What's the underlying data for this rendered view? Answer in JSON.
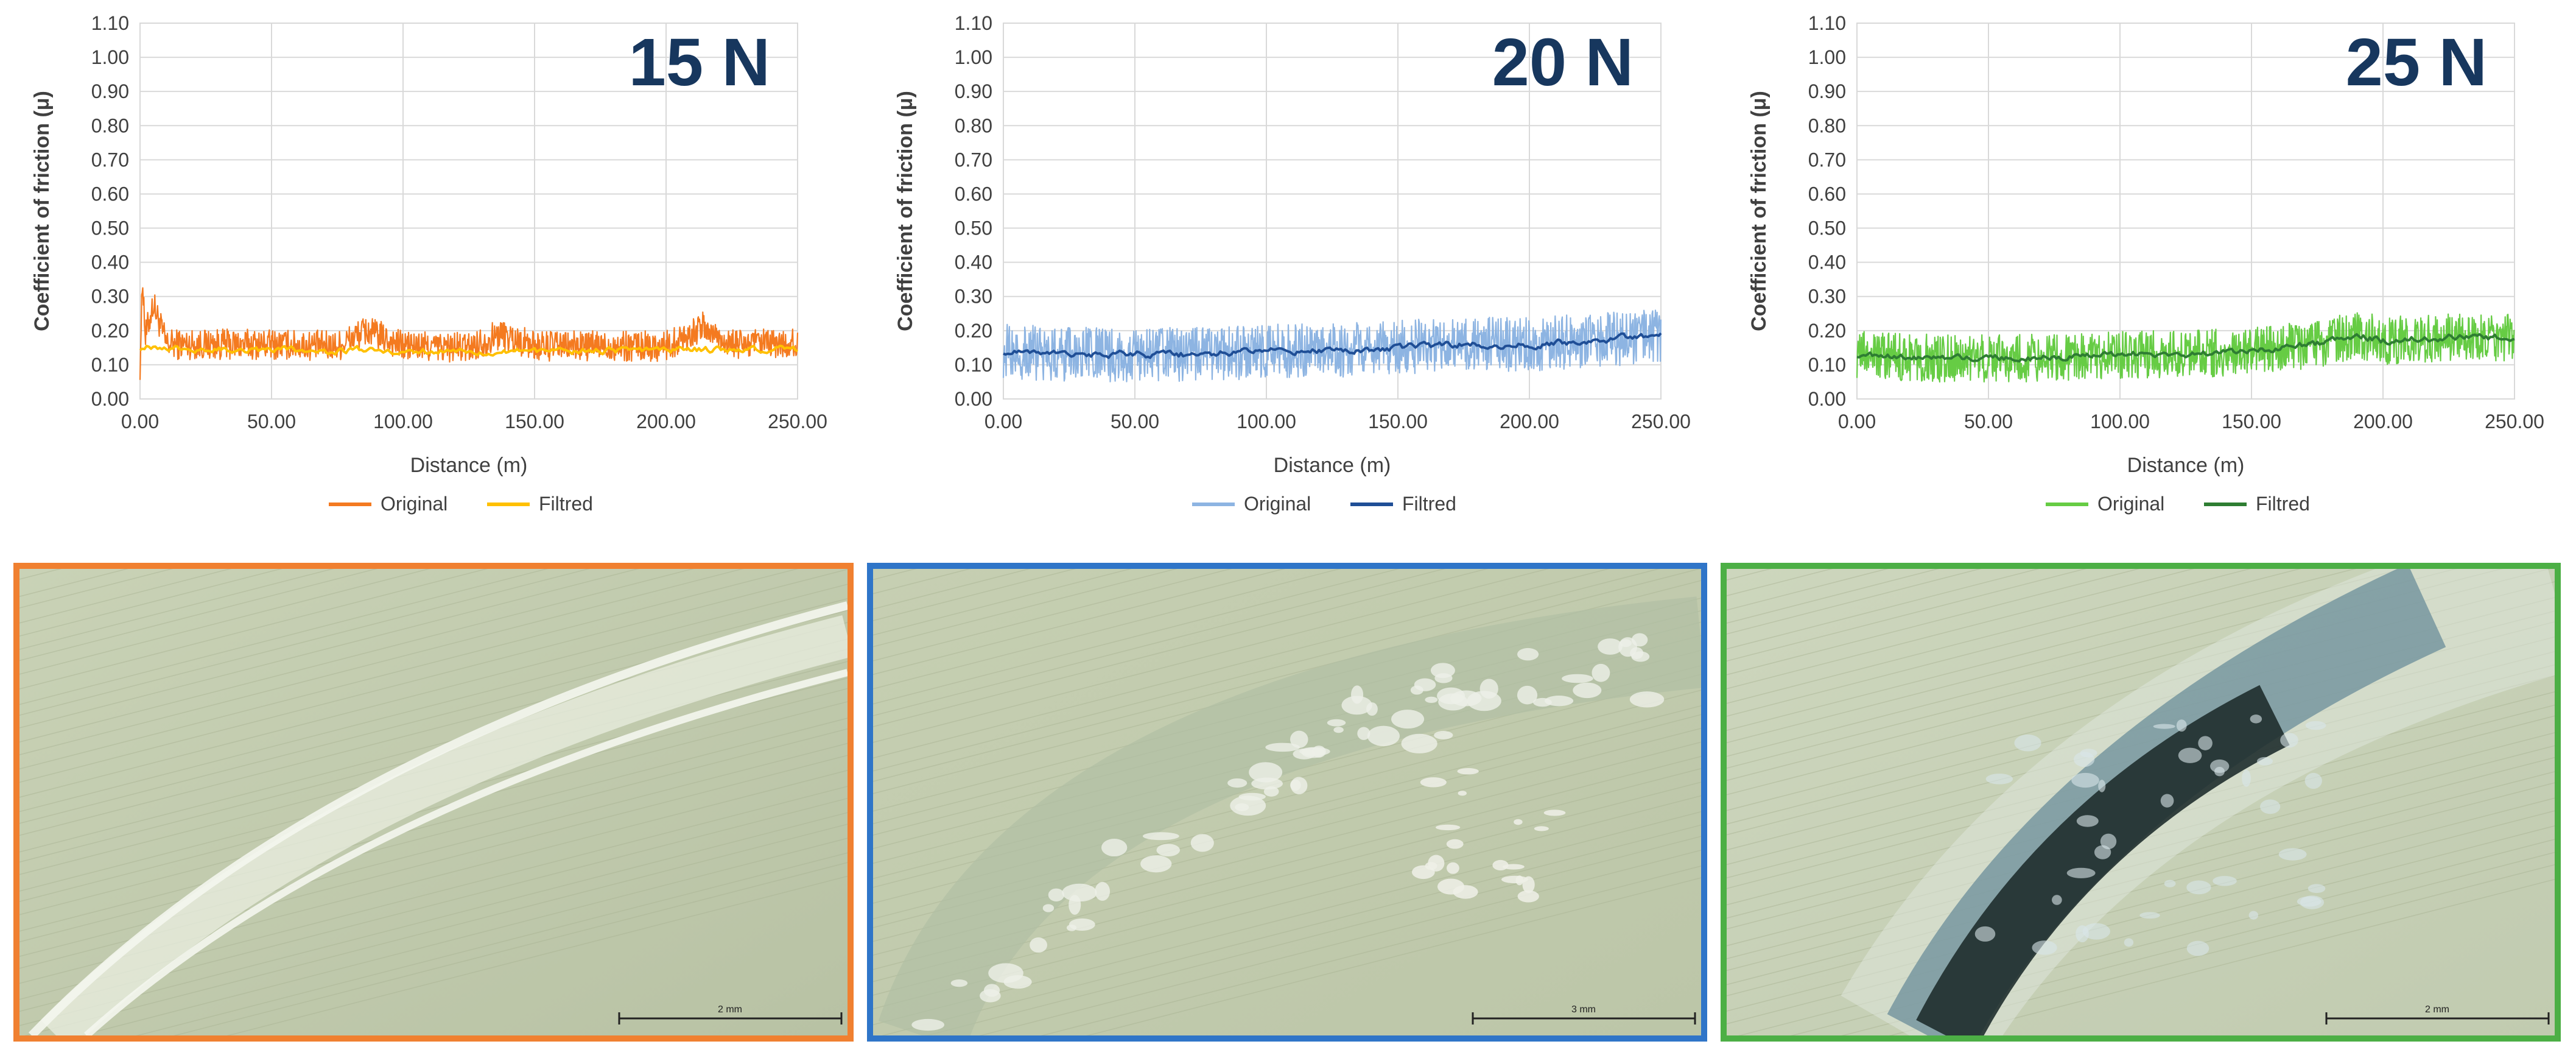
{
  "panels": [
    {
      "load_label": "15 N",
      "frame_color": "#f08030",
      "scale_bar_label": "2 mm",
      "micrograph": "wear-track-micrograph"
    },
    {
      "load_label": "20 N",
      "frame_color": "#2f75c8",
      "scale_bar_label": "3 mm",
      "micrograph": "wear-track-micrograph"
    },
    {
      "load_label": "25 N",
      "frame_color": "#4caf45",
      "scale_bar_label": "2 mm",
      "micrograph": "wear-track-micrograph"
    }
  ],
  "chart_data": [
    {
      "type": "line",
      "title": "15 N",
      "xlabel": "Distance (m)",
      "ylabel": "Coefficient of friction (μ)",
      "xlim": [
        0,
        250
      ],
      "ylim": [
        0,
        1.1
      ],
      "x_ticks": [
        "0.00",
        "50.00",
        "100.00",
        "150.00",
        "200.00",
        "250.00"
      ],
      "y_ticks": [
        "0.00",
        "0.10",
        "0.20",
        "0.30",
        "0.40",
        "0.50",
        "0.60",
        "0.70",
        "0.80",
        "0.90",
        "1.00",
        "1.10"
      ],
      "grid": true,
      "legend_position": "bottom",
      "x": [
        0,
        1,
        2,
        5,
        10,
        25,
        50,
        75,
        86,
        100,
        125,
        137,
        150,
        175,
        200,
        214,
        225,
        250
      ],
      "series": [
        {
          "name": "Original",
          "color": "#f47a20",
          "noise": 0.045,
          "values": [
            0.1,
            0.36,
            0.18,
            0.28,
            0.16,
            0.16,
            0.16,
            0.155,
            0.2,
            0.155,
            0.15,
            0.19,
            0.155,
            0.155,
            0.155,
            0.21,
            0.16,
            0.16
          ]
        },
        {
          "name": "Filtred",
          "color": "#ffc000",
          "noise": 0,
          "values": [
            0.15,
            0.16,
            0.155,
            0.155,
            0.15,
            0.145,
            0.145,
            0.14,
            0.145,
            0.14,
            0.14,
            0.14,
            0.14,
            0.14,
            0.145,
            0.145,
            0.145,
            0.145
          ]
        }
      ]
    },
    {
      "type": "line",
      "title": "20 N",
      "xlabel": "Distance (m)",
      "ylabel": "Coefficient of friction (μ)",
      "xlim": [
        0,
        250
      ],
      "ylim": [
        0,
        1.1
      ],
      "x_ticks": [
        "0.00",
        "50.00",
        "100.00",
        "150.00",
        "200.00",
        "250.00"
      ],
      "y_ticks": [
        "0.00",
        "0.10",
        "0.20",
        "0.30",
        "0.40",
        "0.50",
        "0.60",
        "0.70",
        "0.80",
        "0.90",
        "1.00",
        "1.10"
      ],
      "grid": true,
      "legend_position": "bottom",
      "x": [
        0,
        25,
        50,
        75,
        100,
        125,
        150,
        175,
        200,
        225,
        250
      ],
      "series": [
        {
          "name": "Original",
          "color": "#8db4e2",
          "noise": 0.08,
          "values": [
            0.14,
            0.13,
            0.13,
            0.13,
            0.14,
            0.14,
            0.15,
            0.16,
            0.16,
            0.17,
            0.19
          ]
        },
        {
          "name": "Filtred",
          "color": "#1f4e96",
          "noise": 0,
          "values": [
            0.14,
            0.13,
            0.13,
            0.13,
            0.14,
            0.14,
            0.15,
            0.16,
            0.16,
            0.17,
            0.19
          ]
        }
      ]
    },
    {
      "type": "line",
      "title": "25 N",
      "xlabel": "Distance (m)",
      "ylabel": "Coefficient of friction (μ)",
      "xlim": [
        0,
        250
      ],
      "ylim": [
        0,
        1.1
      ],
      "x_ticks": [
        "0.00",
        "50.00",
        "100.00",
        "150.00",
        "200.00",
        "250.00"
      ],
      "y_ticks": [
        "0.00",
        "0.10",
        "0.20",
        "0.30",
        "0.40",
        "0.50",
        "0.60",
        "0.70",
        "0.80",
        "0.90",
        "1.00",
        "1.10"
      ],
      "grid": true,
      "legend_position": "bottom",
      "x": [
        0,
        25,
        50,
        75,
        100,
        125,
        150,
        175,
        190,
        200,
        225,
        250
      ],
      "series": [
        {
          "name": "Original",
          "color": "#66cc44",
          "noise": 0.07,
          "values": [
            0.13,
            0.12,
            0.12,
            0.12,
            0.13,
            0.13,
            0.14,
            0.16,
            0.19,
            0.17,
            0.18,
            0.18
          ]
        },
        {
          "name": "Filtred",
          "color": "#2e7d32",
          "noise": 0,
          "values": [
            0.13,
            0.12,
            0.12,
            0.12,
            0.13,
            0.13,
            0.14,
            0.16,
            0.19,
            0.17,
            0.18,
            0.18
          ]
        }
      ]
    }
  ]
}
